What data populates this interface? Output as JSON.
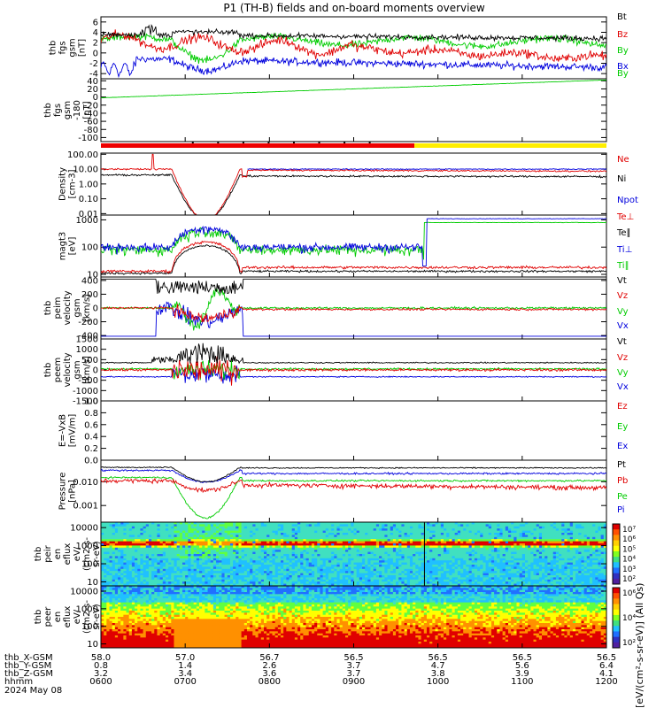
{
  "title": "P1 (TH-B) fields and on-board moments overview",
  "colors": {
    "black": "#000000",
    "red": "#e00000",
    "green": "#00cc00",
    "blue": "#0000dd",
    "yellow": "#ffee00",
    "bar_red": "#ee0000"
  },
  "chart_data": [
    {
      "type": "line",
      "id": "fgs",
      "ylabel": [
        "thb",
        "fgs",
        "gsm",
        "[nT]"
      ],
      "ylim": [
        -5,
        7
      ],
      "ticks": [
        "6",
        "4",
        "2",
        "0",
        "-2",
        "-4"
      ],
      "series": [
        {
          "name": "Bt",
          "color": "black"
        },
        {
          "name": "Bz",
          "color": "red"
        },
        {
          "name": "By",
          "color": "green"
        },
        {
          "name": "Bx",
          "color": "blue"
        }
      ]
    },
    {
      "type": "line",
      "id": "fgs_ang",
      "ylabel": [
        "thb",
        "fgs",
        "gsm",
        "-180",
        "[nT]"
      ],
      "ylim": [
        -110,
        45
      ],
      "ticks": [
        "40",
        "20",
        "0",
        "-20",
        "-40",
        "-60",
        "-80",
        "-100"
      ],
      "series": [
        {
          "name": "By",
          "color": "green"
        }
      ]
    },
    {
      "type": "bar",
      "id": "mode_bar",
      "segments": [
        {
          "x0": 0,
          "x1": 0.62,
          "color": "bar_red"
        },
        {
          "x0": 0.62,
          "x1": 1,
          "color": "yellow"
        }
      ]
    },
    {
      "type": "line",
      "id": "density",
      "ylabel": [
        "Density",
        "[cm-3]"
      ],
      "ylim": [
        0.008,
        120
      ],
      "log": true,
      "ticks": [
        "100.00",
        "10.00",
        "1.00",
        "0.10",
        "0.01"
      ],
      "series": [
        {
          "name": "Ne",
          "color": "red"
        },
        {
          "name": "Ni",
          "color": "black"
        },
        {
          "name": "Npot",
          "color": "blue"
        }
      ]
    },
    {
      "type": "line",
      "id": "temp",
      "ylabel": [
        "magt3",
        "[eV]"
      ],
      "ylim": [
        8,
        1500
      ],
      "log": true,
      "ticks": [
        "1000",
        "100",
        "10"
      ],
      "series": [
        {
          "name": "Te⊥",
          "color": "red"
        },
        {
          "name": "Te∥",
          "color": "black"
        },
        {
          "name": "Ti⊥",
          "color": "blue"
        },
        {
          "name": "Ti∥",
          "color": "green"
        }
      ]
    },
    {
      "type": "line",
      "id": "peim",
      "ylabel": [
        "thb",
        "peim",
        "velocity",
        "gsm",
        "[km/s]"
      ],
      "ylim": [
        -450,
        450
      ],
      "ticks": [
        "400",
        "200",
        "0",
        "-200",
        "-400"
      ],
      "series": [
        {
          "name": "Vt",
          "color": "black"
        },
        {
          "name": "Vz",
          "color": "red"
        },
        {
          "name": "Vy",
          "color": "green"
        },
        {
          "name": "Vx",
          "color": "blue"
        }
      ]
    },
    {
      "type": "line",
      "id": "peem",
      "ylabel": [
        "thb",
        "peem",
        "velocity",
        "gsm",
        "[km/s]"
      ],
      "ylim": [
        -1500,
        1500
      ],
      "ticks": [
        "1500",
        "1000",
        "500",
        "0",
        "-500",
        "-1000",
        "-1500"
      ],
      "series": [
        {
          "name": "Vt",
          "color": "black"
        },
        {
          "name": "Vz",
          "color": "red"
        },
        {
          "name": "Vy",
          "color": "green"
        },
        {
          "name": "Vx",
          "color": "blue"
        }
      ]
    },
    {
      "type": "line",
      "id": "efield",
      "ylabel": [
        "E=-VxB",
        "[mV/m]"
      ],
      "ylim": [
        0,
        1
      ],
      "ticks": [
        "1.0",
        "0.8",
        "0.6",
        "0.4",
        "0.2",
        "0.0"
      ],
      "series": [
        {
          "name": "Ez",
          "color": "red"
        },
        {
          "name": "Ey",
          "color": "green"
        },
        {
          "name": "Ex",
          "color": "blue"
        }
      ]
    },
    {
      "type": "line",
      "id": "pressure",
      "ylabel": [
        "Pressure",
        "[nPa]"
      ],
      "ylim": [
        0.0002,
        0.08
      ],
      "log": true,
      "ticks": [
        "0.010",
        "0.001"
      ],
      "series": [
        {
          "name": "Pt",
          "color": "black"
        },
        {
          "name": "Pb",
          "color": "red"
        },
        {
          "name": "Pe",
          "color": "green"
        },
        {
          "name": "Pi",
          "color": "blue"
        }
      ]
    },
    {
      "type": "heatmap",
      "id": "peir",
      "ylabel": [
        "thb",
        "peir",
        "en",
        "eflux",
        "eV/",
        "(cm2-s-",
        "sr-eV)"
      ],
      "ylim": [
        6,
        20000
      ],
      "log": true,
      "ticks": [
        "10000",
        "1000",
        "100",
        "10"
      ]
    },
    {
      "type": "heatmap",
      "id": "peer",
      "ylabel": [
        "thb",
        "peer",
        "en",
        "eflux",
        "eV/",
        "(cm2-s-",
        "sr-eV)"
      ],
      "ylim": [
        6,
        20000
      ],
      "log": true,
      "ticks": [
        "10000",
        "1000",
        "100",
        "10"
      ]
    }
  ],
  "colorbar": {
    "label": "[eV/(cm²-s-sr-eV)] (All Qs)",
    "top_ticks": [
      "10⁷",
      "10⁶",
      "10⁵",
      "10⁴",
      "10³",
      "10²"
    ],
    "bottom_ticks": [
      "10⁶",
      "10⁴",
      "10²"
    ]
  },
  "xaxis": {
    "rows": [
      {
        "name": "thb_X-GSM",
        "values": [
          "58.0",
          "57.0",
          "56.7",
          "56.5",
          "56.5",
          "56.5",
          "56.5"
        ]
      },
      {
        "name": "thb_Y-GSM",
        "values": [
          "0.8",
          "1.4",
          "2.6",
          "3.7",
          "4.7",
          "5.6",
          "6.4"
        ]
      },
      {
        "name": "thb_Z-GSM",
        "values": [
          "3.2",
          "3.4",
          "3.6",
          "3.7",
          "3.8",
          "3.9",
          "4.1"
        ]
      },
      {
        "name": "hhmm",
        "values": [
          "0600",
          "0700",
          "0800",
          "0900",
          "1000",
          "1100",
          "1200"
        ]
      }
    ],
    "date": "2024 May 08"
  }
}
